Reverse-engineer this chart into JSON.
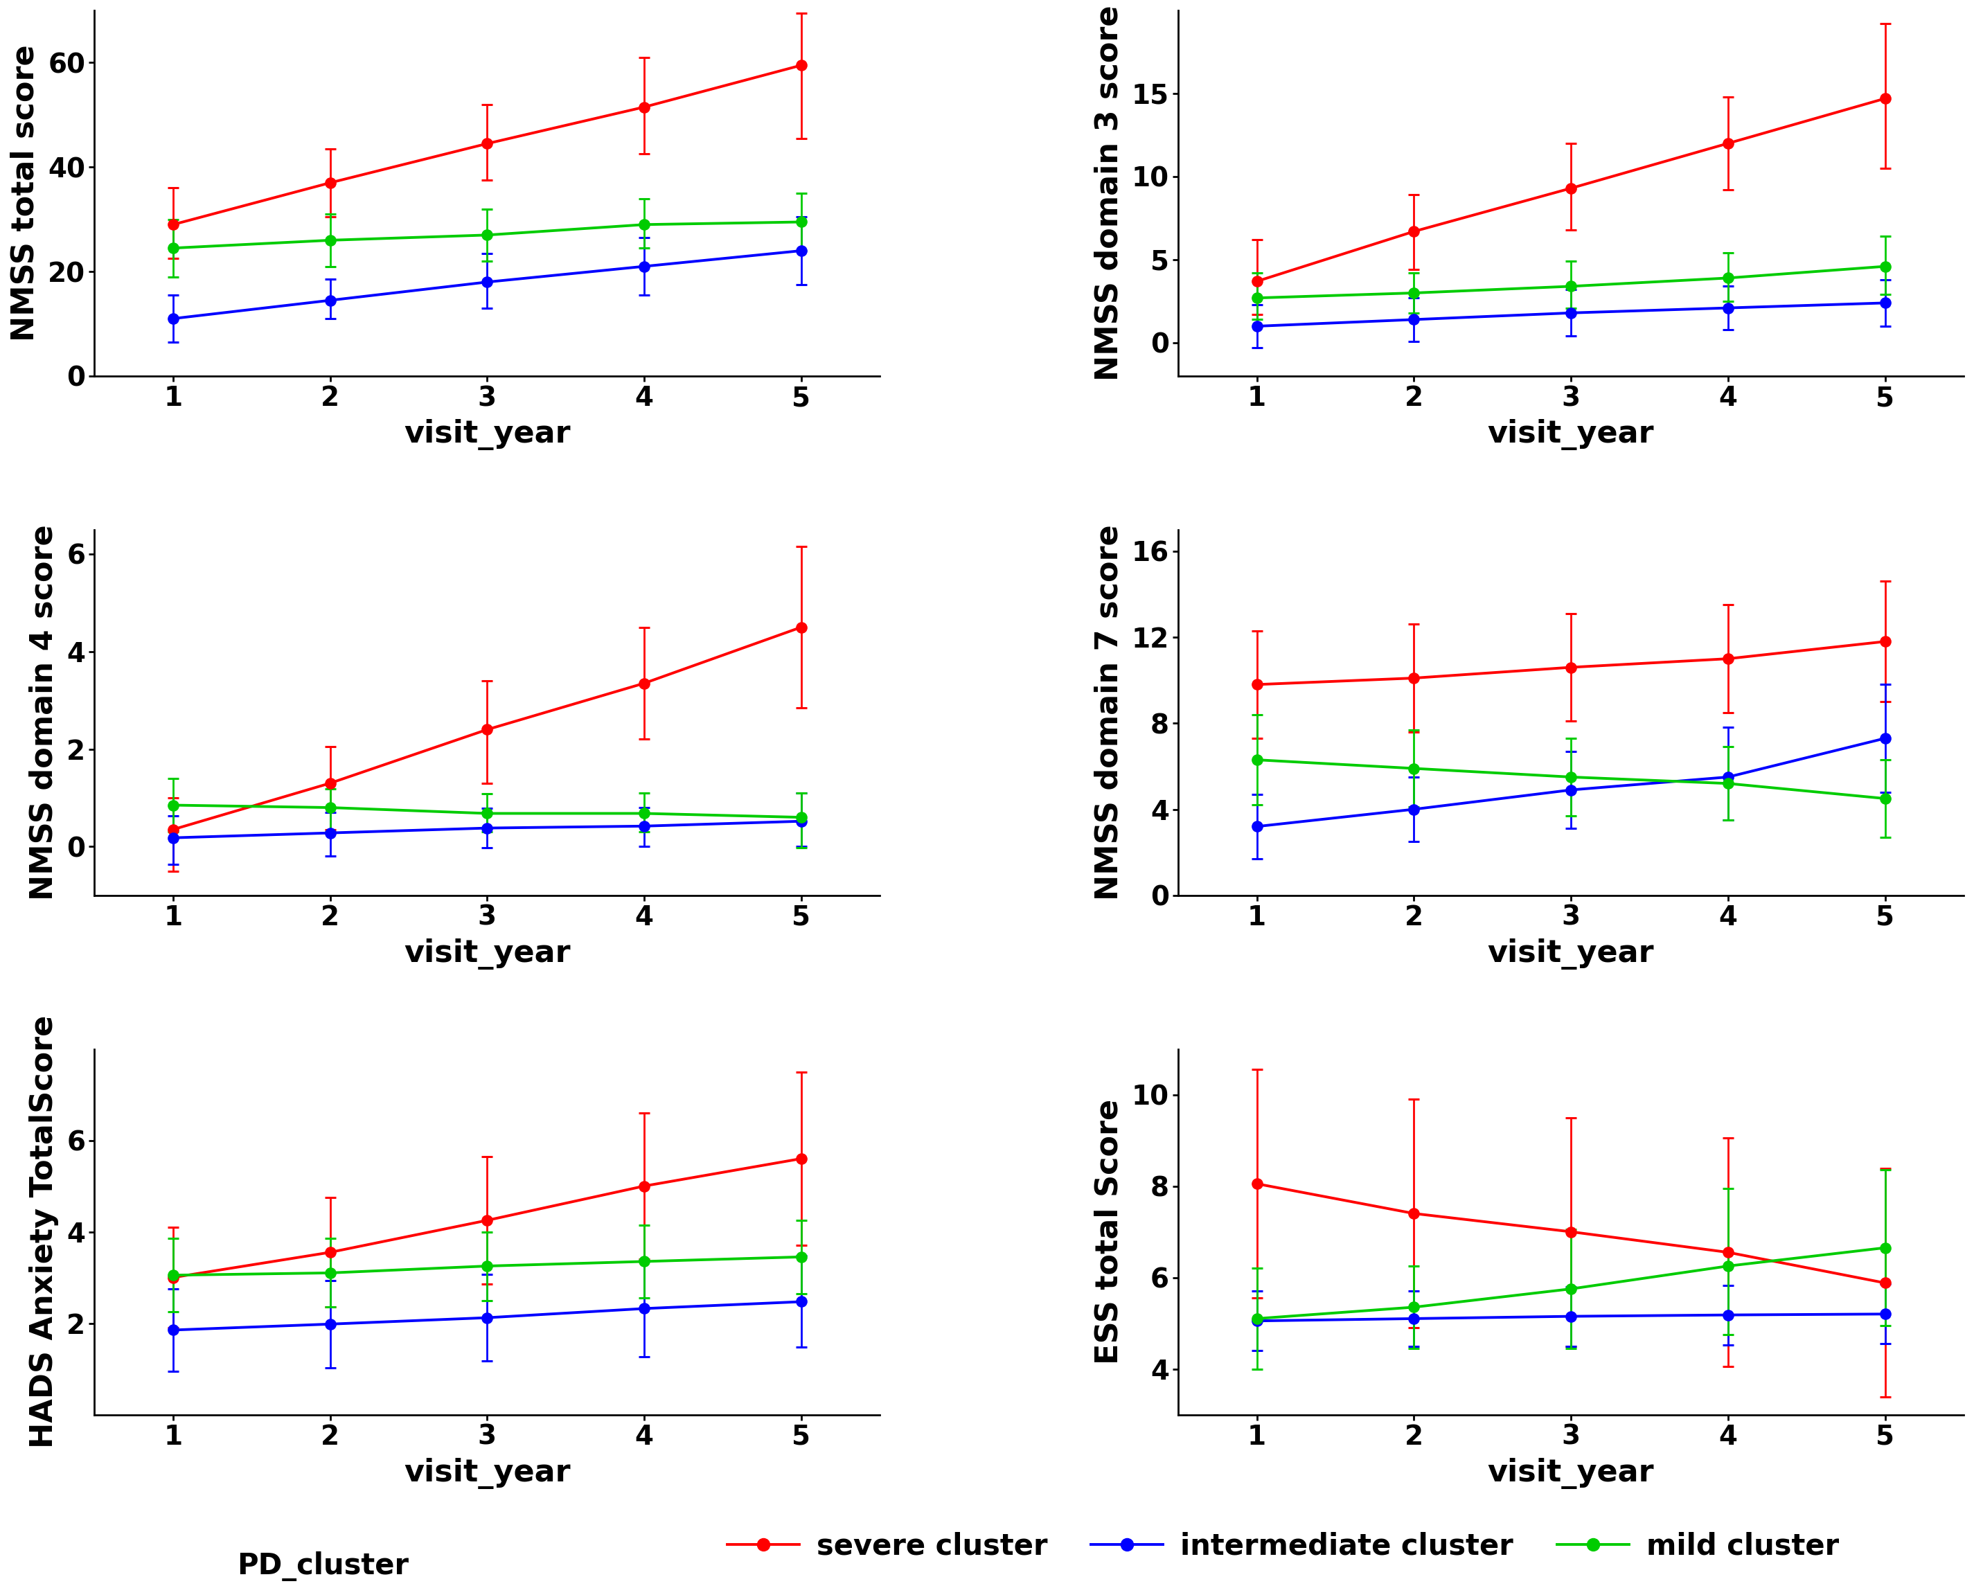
{
  "visit_years": [
    1,
    2,
    3,
    4,
    5
  ],
  "plots": [
    {
      "ylabel": "NMSS total score",
      "ylim": [
        0,
        70
      ],
      "yticks": [
        0,
        20,
        40,
        60
      ],
      "red": {
        "y": [
          29.0,
          37.0,
          44.5,
          51.5,
          59.5
        ],
        "yerr_lo": [
          6.5,
          6.5,
          7.0,
          9.0,
          14.0
        ],
        "yerr_hi": [
          7.0,
          6.5,
          7.5,
          9.5,
          10.0
        ]
      },
      "blue": {
        "y": [
          11.0,
          14.5,
          18.0,
          21.0,
          24.0
        ],
        "yerr_lo": [
          4.5,
          3.5,
          5.0,
          5.5,
          6.5
        ],
        "yerr_hi": [
          4.5,
          4.0,
          5.5,
          5.5,
          6.5
        ]
      },
      "green": {
        "y": [
          24.5,
          26.0,
          27.0,
          29.0,
          29.5
        ],
        "yerr_lo": [
          5.5,
          5.0,
          5.0,
          4.5,
          5.5
        ],
        "yerr_hi": [
          5.5,
          5.0,
          5.0,
          5.0,
          5.5
        ]
      }
    },
    {
      "ylabel": "NMSS domain 3 score",
      "ylim": [
        -2,
        20
      ],
      "yticks": [
        0,
        5,
        10,
        15
      ],
      "red": {
        "y": [
          3.7,
          6.7,
          9.3,
          12.0,
          14.7
        ],
        "yerr_lo": [
          2.0,
          2.3,
          2.5,
          2.8,
          4.2
        ],
        "yerr_hi": [
          2.5,
          2.2,
          2.7,
          2.8,
          4.5
        ]
      },
      "blue": {
        "y": [
          1.0,
          1.4,
          1.8,
          2.1,
          2.4
        ],
        "yerr_lo": [
          1.3,
          1.3,
          1.4,
          1.3,
          1.4
        ],
        "yerr_hi": [
          1.3,
          1.3,
          1.4,
          1.3,
          1.4
        ]
      },
      "green": {
        "y": [
          2.7,
          3.0,
          3.4,
          3.9,
          4.6
        ],
        "yerr_lo": [
          1.3,
          1.2,
          1.3,
          1.4,
          1.7
        ],
        "yerr_hi": [
          1.5,
          1.2,
          1.5,
          1.5,
          1.8
        ]
      }
    },
    {
      "ylabel": "NMSS domain 4 score",
      "ylim": [
        -1,
        6.5
      ],
      "yticks": [
        0,
        2,
        4,
        6
      ],
      "red": {
        "y": [
          0.35,
          1.3,
          2.4,
          3.35,
          4.5
        ],
        "yerr_lo": [
          0.85,
          0.95,
          1.1,
          1.15,
          1.65
        ],
        "yerr_hi": [
          0.65,
          0.75,
          1.0,
          1.15,
          1.65
        ]
      },
      "blue": {
        "y": [
          0.18,
          0.28,
          0.38,
          0.42,
          0.52
        ],
        "yerr_lo": [
          0.55,
          0.48,
          0.4,
          0.42,
          0.52
        ],
        "yerr_hi": [
          0.45,
          0.42,
          0.4,
          0.38,
          0.58
        ]
      },
      "green": {
        "y": [
          0.85,
          0.8,
          0.68,
          0.68,
          0.6
        ],
        "yerr_lo": [
          0.55,
          0.5,
          0.38,
          0.38,
          0.62
        ],
        "yerr_hi": [
          0.55,
          0.38,
          0.4,
          0.42,
          0.5
        ]
      }
    },
    {
      "ylabel": "NMSS domain 7 score",
      "ylim": [
        0,
        17
      ],
      "yticks": [
        0,
        4,
        8,
        12,
        16
      ],
      "red": {
        "y": [
          9.8,
          10.1,
          10.6,
          11.0,
          11.8
        ],
        "yerr_lo": [
          2.5,
          2.5,
          2.5,
          2.5,
          2.8
        ],
        "yerr_hi": [
          2.5,
          2.5,
          2.5,
          2.5,
          2.8
        ]
      },
      "blue": {
        "y": [
          3.2,
          4.0,
          4.9,
          5.5,
          7.3
        ],
        "yerr_lo": [
          1.5,
          1.5,
          1.8,
          2.0,
          2.5
        ],
        "yerr_hi": [
          1.5,
          1.5,
          1.8,
          2.3,
          2.5
        ]
      },
      "green": {
        "y": [
          6.3,
          5.9,
          5.5,
          5.2,
          4.5
        ],
        "yerr_lo": [
          2.1,
          1.8,
          1.8,
          1.7,
          1.8
        ],
        "yerr_hi": [
          2.1,
          1.8,
          1.8,
          1.7,
          1.8
        ]
      }
    },
    {
      "ylabel": "HADS Anxiety TotalScore",
      "ylim": [
        0,
        8
      ],
      "yticks": [
        2,
        4,
        6
      ],
      "red": {
        "y": [
          3.0,
          3.55,
          4.25,
          5.0,
          5.6
        ],
        "yerr_lo": [
          1.1,
          1.2,
          1.4,
          1.6,
          1.9
        ],
        "yerr_hi": [
          1.1,
          1.2,
          1.4,
          1.6,
          1.9
        ]
      },
      "blue": {
        "y": [
          1.85,
          1.98,
          2.12,
          2.32,
          2.47
        ],
        "yerr_lo": [
          0.9,
          0.95,
          0.95,
          1.05,
          1.0
        ],
        "yerr_hi": [
          0.9,
          0.95,
          0.95,
          1.05,
          1.0
        ]
      },
      "green": {
        "y": [
          3.05,
          3.1,
          3.25,
          3.35,
          3.45
        ],
        "yerr_lo": [
          0.8,
          0.75,
          0.75,
          0.8,
          0.8
        ],
        "yerr_hi": [
          0.8,
          0.75,
          0.75,
          0.8,
          0.8
        ]
      }
    },
    {
      "ylabel": "ESS total Score",
      "ylim": [
        3,
        11
      ],
      "yticks": [
        4,
        6,
        8,
        10
      ],
      "red": {
        "y": [
          8.05,
          7.4,
          7.0,
          6.55,
          5.88
        ],
        "yerr_lo": [
          2.5,
          2.5,
          2.5,
          2.5,
          2.5
        ],
        "yerr_hi": [
          2.5,
          2.5,
          2.5,
          2.5,
          2.5
        ]
      },
      "blue": {
        "y": [
          5.05,
          5.1,
          5.15,
          5.18,
          5.2
        ],
        "yerr_lo": [
          0.65,
          0.6,
          0.65,
          0.65,
          0.65
        ],
        "yerr_hi": [
          0.65,
          0.6,
          0.65,
          0.65,
          0.65
        ]
      },
      "green": {
        "y": [
          5.1,
          5.35,
          5.75,
          6.25,
          6.65
        ],
        "yerr_lo": [
          1.1,
          0.9,
          1.3,
          1.5,
          1.7
        ],
        "yerr_hi": [
          1.1,
          0.9,
          1.3,
          1.7,
          1.7
        ]
      }
    }
  ],
  "colors": {
    "red": "#FF0000",
    "blue": "#0000FF",
    "green": "#00CC00"
  },
  "marker_size": 11,
  "line_width": 2.8,
  "capsize": 6,
  "elinewidth": 2.0,
  "capthick": 2.2,
  "legend_labels": [
    "severe cluster",
    "intermediate cluster",
    "mild cluster"
  ],
  "xlabel": "visit_year",
  "background_color": "#FFFFFF",
  "title_fontsize": 32,
  "label_fontsize": 32,
  "tick_fontsize": 28,
  "legend_fontsize": 30
}
